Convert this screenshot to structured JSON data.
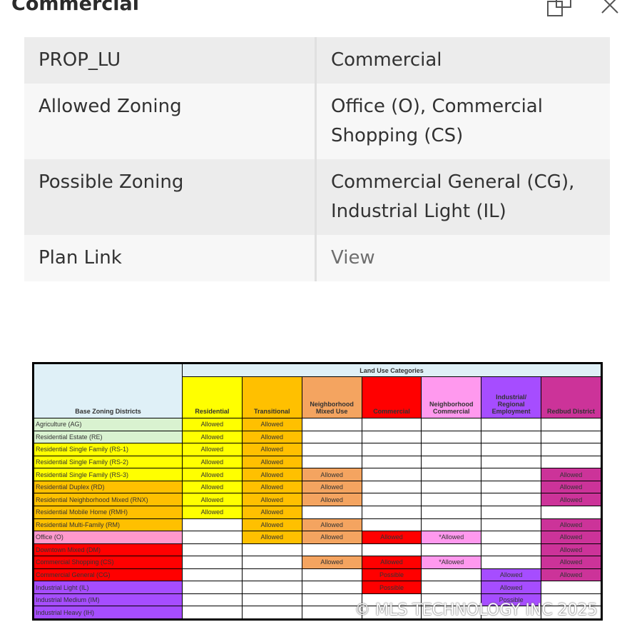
{
  "popup": {
    "title": "Commercial",
    "dock_icon": "dock-icon",
    "close_icon": "close-icon"
  },
  "attributes": [
    {
      "key": "PROP_LU",
      "value": "Commercial"
    },
    {
      "key": "Allowed Zoning",
      "value": "Office (O), Commercial Shopping (CS)"
    },
    {
      "key": "Possible Zoning",
      "value": "Commercial General (CG), Industrial Light (IL)"
    },
    {
      "key": "Plan Link",
      "value": "View"
    }
  ],
  "zoning_table": {
    "header_group": "Land Use Categories",
    "row_header": "Base Zoning Districts",
    "columns": [
      {
        "label": "Residential",
        "color": "#ffff00"
      },
      {
        "label": "Transitional",
        "color": "#ffc000"
      },
      {
        "label": "Neighborhood Mixed Use",
        "color": "#f4a460"
      },
      {
        "label": "Commercial",
        "color": "#ff0000"
      },
      {
        "label": "Neighborhood Commercial",
        "color": "#ff99ee"
      },
      {
        "label": "Industrial/ Regional Employment",
        "color": "#a64dff"
      },
      {
        "label": "Redbud District",
        "color": "#cc3399"
      }
    ],
    "rows": [
      {
        "district": "Agriculture (AG)",
        "color": "#d9f2d0",
        "cells": [
          "Allowed",
          "Allowed",
          "",
          "",
          "",
          "",
          ""
        ]
      },
      {
        "district": "Residential Estate (RE)",
        "color": "#d9f2d0",
        "cells": [
          "Allowed",
          "Allowed",
          "",
          "",
          "",
          "",
          ""
        ]
      },
      {
        "district": "Residential Single Family (RS-1)",
        "color": "#ffff00",
        "cells": [
          "Allowed",
          "Allowed",
          "",
          "",
          "",
          "",
          ""
        ]
      },
      {
        "district": "Residential Single Family (RS-2)",
        "color": "#ffff00",
        "cells": [
          "Allowed",
          "Allowed",
          "",
          "",
          "",
          "",
          ""
        ]
      },
      {
        "district": "Residential Single Family (RS-3)",
        "color": "#ffff00",
        "cells": [
          "Allowed",
          "Allowed",
          "Allowed",
          "",
          "",
          "",
          "Allowed"
        ]
      },
      {
        "district": "Residential Duplex (RD)",
        "color": "#ffc000",
        "cells": [
          "Allowed",
          "Allowed",
          "Allowed",
          "",
          "",
          "",
          "Allowed"
        ]
      },
      {
        "district": "Residential Neighborhood Mixed (RNX)",
        "color": "#ffc000",
        "cells": [
          "Allowed",
          "Allowed",
          "Allowed",
          "",
          "",
          "",
          "Allowed"
        ]
      },
      {
        "district": "Residential Mobile Home (RMH)",
        "color": "#ffc000",
        "cells": [
          "Allowed",
          "Allowed",
          "",
          "",
          "",
          "",
          ""
        ]
      },
      {
        "district": "Residential Multi-Family (RM)",
        "color": "#ffc000",
        "cells": [
          "",
          "Allowed",
          "Allowed",
          "",
          "",
          "",
          "Allowed"
        ]
      },
      {
        "district": "Office (O)",
        "color": "#ff99cc",
        "cells": [
          "",
          "Allowed",
          "Allowed",
          "Allowed",
          "*Allowed",
          "",
          "Allowed"
        ]
      },
      {
        "district": "Downtown Mixed (DM)",
        "color": "#ff0000",
        "cells": [
          "",
          "",
          "",
          "",
          "",
          "",
          "Allowed"
        ]
      },
      {
        "district": "Commercial Shopping (CS)",
        "color": "#ff0000",
        "cells": [
          "",
          "",
          "Allowed",
          "Allowed",
          "*Allowed",
          "",
          "Allowed"
        ]
      },
      {
        "district": "Commercial General (CG)",
        "color": "#ff0000",
        "cells": [
          "",
          "",
          "",
          "Possible",
          "",
          "Allowed",
          "Allowed"
        ]
      },
      {
        "district": "Industrial Light (IL)",
        "color": "#a64dff",
        "cells": [
          "",
          "",
          "",
          "Possible",
          "",
          "Allowed",
          ""
        ]
      },
      {
        "district": "Industrial Medium (IM)",
        "color": "#a64dff",
        "cells": [
          "",
          "",
          "",
          "",
          "",
          "Possible",
          ""
        ]
      },
      {
        "district": "Industrial Heavy (IH)",
        "color": "#a64dff",
        "cells": [
          "",
          "",
          "",
          "",
          "",
          "",
          ""
        ]
      }
    ]
  },
  "watermark": "© MLS TECHNOLOGY INC 2025"
}
